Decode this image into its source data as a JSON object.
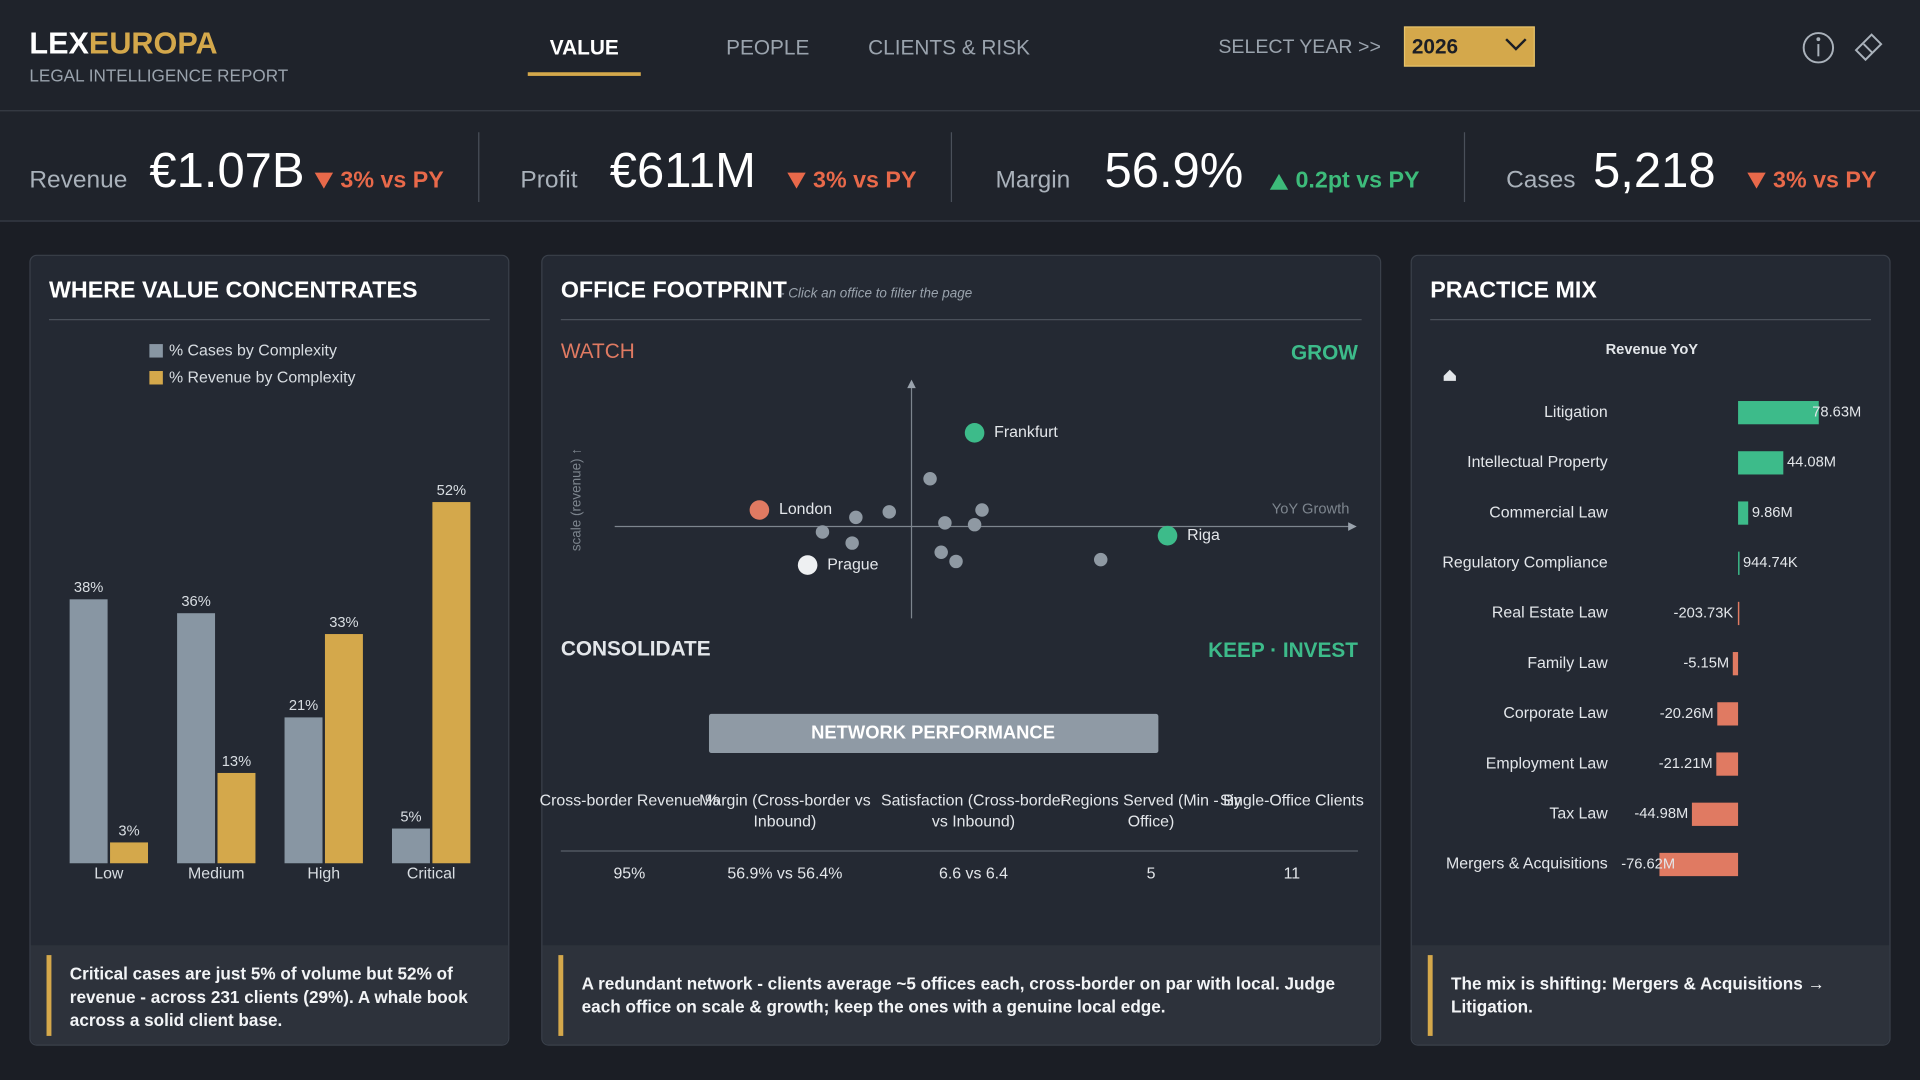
{
  "header": {
    "brand_a": "LEX",
    "brand_b": "EUROPA",
    "subtitle": "LEGAL INTELLIGENCE REPORT",
    "tabs": [
      "VALUE",
      "PEOPLE",
      "CLIENTS & RISK"
    ],
    "active_tab": 0,
    "select_label": "SELECT YEAR >>",
    "year": "2026"
  },
  "kpis": [
    {
      "label": "Revenue",
      "value": "€1.07B",
      "delta": "3% vs PY",
      "direction": "down",
      "color": "#e8694a"
    },
    {
      "label": "Profit",
      "value": "€611M",
      "delta": "3% vs PY",
      "direction": "down",
      "color": "#e8694a"
    },
    {
      "label": "Margin",
      "value": "56.9%",
      "delta": "0.2pt vs PY",
      "direction": "up",
      "color": "#3dbb7a"
    },
    {
      "label": "Cases",
      "value": "5,218",
      "delta": "3% vs PY",
      "direction": "down",
      "color": "#e8694a"
    }
  ],
  "value_panel": {
    "title": "WHERE VALUE CONCENTRATES",
    "chart": {
      "type": "bar",
      "categories": [
        "Low",
        "Medium",
        "High",
        "Critical"
      ],
      "ylim": [
        0,
        55
      ],
      "series": [
        {
          "name": "% Cases by Complexity",
          "color": "#8896a3",
          "values": [
            38,
            36,
            21,
            5
          ],
          "value_labels": [
            "38%",
            "36%",
            "21%",
            "5%"
          ]
        },
        {
          "name": "% Revenue by Complexity",
          "color": "#d4a84b",
          "values": [
            3,
            13,
            33,
            52
          ],
          "value_labels": [
            "3%",
            "13%",
            "33%",
            "52%"
          ]
        }
      ]
    },
    "note": "Critical cases are just 5% of volume but 52% of revenue - across 231 clients (29%). A whale book across a solid client base."
  },
  "office_panel": {
    "title": "OFFICE FOOTPRINT",
    "hint": "- Click an office to filter the page",
    "quadrants": {
      "watch": "WATCH",
      "grow": "GROW",
      "consolidate": "CONSOLIDATE",
      "keep": "KEEP · INVEST"
    },
    "chart": {
      "type": "scatter",
      "y_label": "scale (revenue) ↑",
      "x_label": "YoY Growth",
      "xlim": [
        -8,
        12
      ],
      "ylim": [
        -5,
        8
      ],
      "x": [
        1.7,
        -4.1,
        6.9,
        -2.8,
        0.5,
        -1.5,
        -0.6,
        -2.4,
        -1.6,
        0.9,
        1.9,
        1.7,
        0.8,
        1.2,
        5.1
      ],
      "y": [
        5.1,
        0.9,
        -0.5,
        -2.1,
        2.6,
        0.5,
        0.8,
        -0.3,
        -0.9,
        0.2,
        0.9,
        0.1,
        -1.4,
        -1.9,
        -1.8
      ],
      "labels": [
        "Frankfurt",
        "London",
        "Riga",
        "Prague",
        null,
        null,
        null,
        null,
        null,
        null,
        null,
        null,
        null,
        null,
        null
      ],
      "colors": [
        "#3dbb8a",
        "#e07a62",
        "#3dbb8a",
        "#eef0f2",
        "#8f99a3",
        "#8f99a3",
        "#8f99a3",
        "#8f99a3",
        "#8f99a3",
        "#8f99a3",
        "#8f99a3",
        "#8f99a3",
        "#8f99a3",
        "#8f99a3",
        "#8f99a3"
      ]
    },
    "network": {
      "title": "NETWORK PERFORMANCE",
      "headers": [
        "Cross-border Revenue %",
        "Margin (Cross-border vs Inbound)",
        "Satisfaction (Cross-border vs Inbound)",
        "Regions Served (Min - By Office)",
        "Single-Office Clients"
      ],
      "row": [
        "95%",
        "56.9% vs 56.4%",
        "6.6 vs 6.4",
        "5",
        "11"
      ]
    },
    "note": "A redundant network - clients average ~5 offices each, cross-border on par with local. Judge each office on scale & growth; keep the ones with a genuine local edge."
  },
  "practice_panel": {
    "title": "PRACTICE MIX",
    "chart": {
      "type": "bar",
      "orientation": "horizontal",
      "subtitle": "Revenue YoY",
      "xlim": [
        -90,
        120
      ],
      "positive_color": "#3dbb8a",
      "negative_color": "#e07a62",
      "categories": [
        "Litigation",
        "Intellectual Property",
        "Commercial Law",
        "Regulatory Compliance",
        "Real Estate Law",
        "Family Law",
        "Corporate Law",
        "Employment Law",
        "Tax Law",
        "Mergers & Acquisitions"
      ],
      "values": [
        78.63,
        44.08,
        9.86,
        0.94474,
        -0.20373,
        -5.15,
        -20.26,
        -21.21,
        -44.98,
        -76.62
      ],
      "value_labels": [
        "78.63M",
        "44.08M",
        "9.86M",
        "944.74K",
        "-203.73K",
        "-5.15M",
        "-20.26M",
        "-21.21M",
        "-44.98M",
        "-76.62M"
      ]
    },
    "note": "The mix is shifting: Mergers & Acquisitions → Litigation."
  }
}
